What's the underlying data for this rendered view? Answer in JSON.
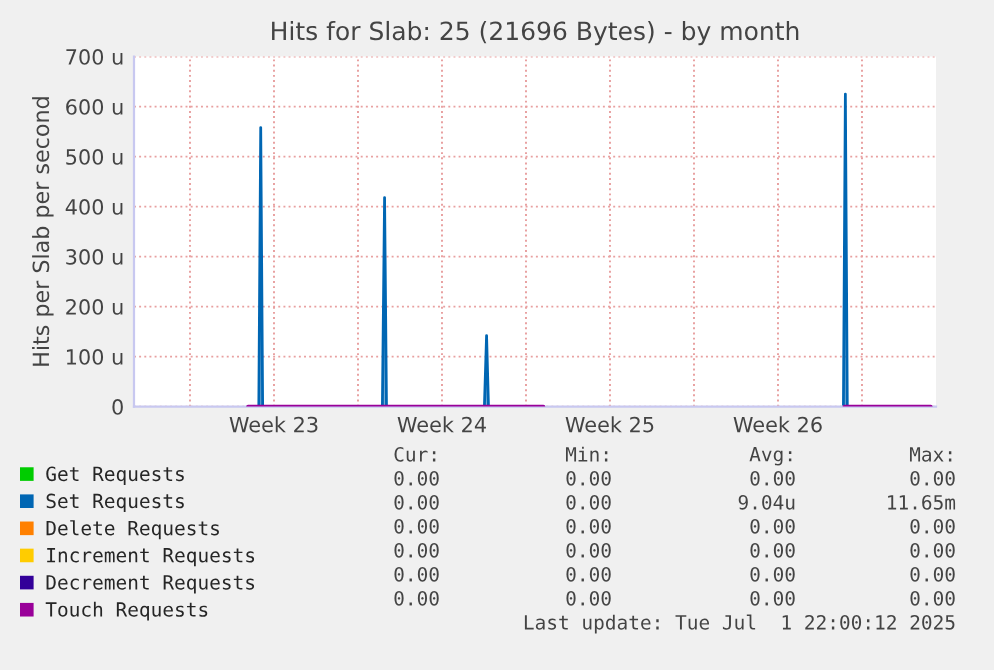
{
  "chart_data": {
    "type": "line",
    "title": "Hits for Slab: 25 (21696 Bytes) - by month",
    "ylabel": "Hits per Slab per second",
    "xlim": [
      "2025-05-30T16:00",
      "2025-07-03T02:00"
    ],
    "ylim": [
      0,
      700
    ],
    "xticks": [
      {
        "value": "2025-06-02",
        "label": null
      },
      {
        "value": "2025-06-05T12:00",
        "label": "Week 23"
      },
      {
        "value": "2025-06-09",
        "label": null
      },
      {
        "value": "2025-06-12T12:00",
        "label": "Week 24"
      },
      {
        "value": "2025-06-16",
        "label": null
      },
      {
        "value": "2025-06-19T12:00",
        "label": "Week 25"
      },
      {
        "value": "2025-06-23",
        "label": null
      },
      {
        "value": "2025-06-26T12:00",
        "label": "Week 26"
      },
      {
        "value": "2025-06-30",
        "label": null
      }
    ],
    "yticks": [
      0,
      {
        "value": 100,
        "label": "100 u"
      },
      {
        "value": 200,
        "label": "200 u"
      },
      {
        "value": 300,
        "label": "300 u"
      },
      {
        "value": 400,
        "label": "400 u"
      },
      {
        "value": 500,
        "label": "500 u"
      },
      {
        "value": 600,
        "label": "600 u"
      },
      {
        "value": 700,
        "label": "700 u"
      }
    ],
    "grid": true,
    "legend": "bottom",
    "series": [
      {
        "name": "Get Requests",
        "color": "#00cc00"
      },
      {
        "name": "Set Requests",
        "color": "#0066b3",
        "type": "area",
        "x": [
          "2025-06-04T10:00",
          "2025-06-04T20:48",
          "2025-06-04T22:43",
          "2025-06-05T00:38",
          "2025-06-10T00:24",
          "2025-06-10T02:34",
          "2025-06-10T04:29",
          "2025-06-14T06:24",
          "2025-06-14T08:34",
          "2025-06-14T10:29",
          "2025-06-16T17:26",
          "2025-06-22T16:00",
          "2025-06-29T05:26",
          "2025-06-29T07:22",
          "2025-06-29T09:17",
          "2025-07-02T20:48"
        ],
        "values": [
          0,
          0,
          558,
          0,
          0,
          418,
          0,
          0,
          142,
          0,
          0,
          null,
          0,
          625,
          0,
          0
        ]
      },
      {
        "name": "Delete Requests",
        "color": "#ff8000"
      },
      {
        "name": "Increment Requests",
        "color": "#ffcc00"
      },
      {
        "name": "Decrement Requests",
        "color": "#330099"
      },
      {
        "name": "Touch Requests",
        "color": "#990099",
        "x": [
          "2025-06-04T10:00",
          "2025-06-16T17:26",
          "2025-06-22T16:00",
          "2025-06-29T06:24",
          "2025-07-02T20:48"
        ],
        "values": [
          0,
          0,
          null,
          0,
          0
        ]
      }
    ],
    "annotations": [
      "Cur:",
      "Min:",
      "Avg:",
      "Max:",
      "0.00",
      "0.00",
      "0.00",
      "0.00",
      "0.00",
      "0.00",
      "9.04u",
      "11.65m",
      "0.00",
      "0.00",
      "0.00",
      "0.00",
      "0.00",
      "0.00",
      "0.00",
      "0.00",
      "0.00",
      "0.00",
      "0.00",
      "0.00",
      "0.00",
      "0.00",
      "0.00",
      "0.00",
      "Last update: Tue Jul  1 22:00:12 2025"
    ]
  }
}
